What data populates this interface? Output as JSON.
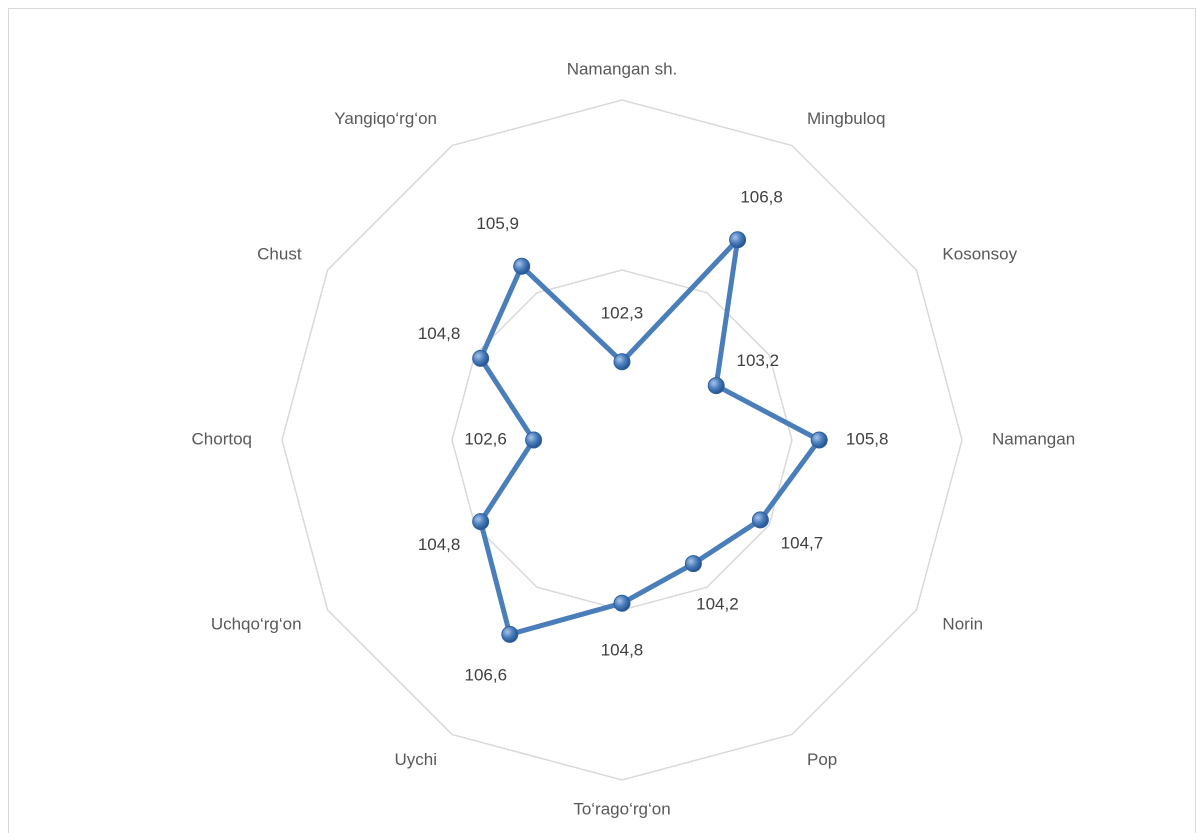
{
  "chart_data": {
    "type": "radar",
    "categories": [
      "Namangan sh.",
      "Mingbuloq",
      "Kosonsoy",
      "Namangan",
      "Norin",
      "Pop",
      "To‘rago‘rg‘on",
      "Uychi",
      "Uchqo‘rg‘on",
      "Chortoq",
      "Chust",
      "Yangiqo‘rg‘on"
    ],
    "values": [
      102.3,
      106.8,
      103.2,
      105.8,
      104.7,
      104.2,
      104.8,
      106.6,
      104.8,
      102.6,
      104.8,
      105.9
    ],
    "value_labels": [
      "102,3",
      "106,8",
      "103,2",
      "105,8",
      "104,7",
      "104,2",
      "104,8",
      "106,6",
      "104,8",
      "102,6",
      "104,8",
      "105,9"
    ],
    "color": "#4a7ebb",
    "ylim": [
      100,
      110
    ],
    "yticks": [
      100,
      105,
      110
    ],
    "grid": true,
    "tick_labels": false
  }
}
